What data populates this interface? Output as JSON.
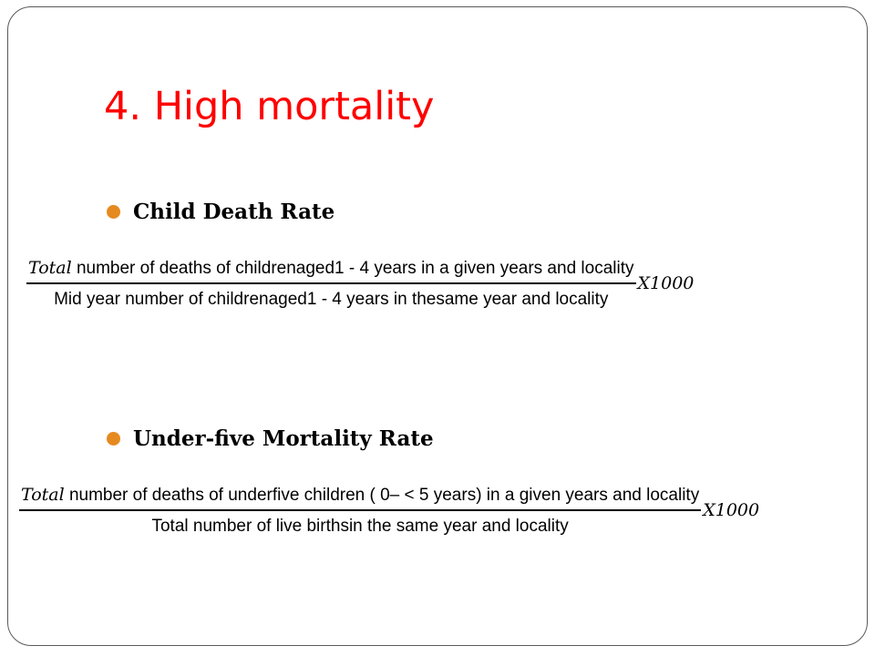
{
  "slide": {
    "title": "4. High mortality",
    "accent_color": "#ff0000",
    "bullet_color": "#e58a1f"
  },
  "bullets": [
    {
      "label": "Child Death Rate"
    },
    {
      "label": "Under-five Mortality Rate"
    }
  ],
  "formulas": [
    {
      "numerator_lead": "Total",
      "numerator_rest": " number of deaths of childrenaged1 - 4 years in a given years and locality",
      "denominator": "Mid year number of childrenaged1 - 4 years in thesame year and locality",
      "multiplier": "X1000"
    },
    {
      "numerator_lead": "Total",
      "numerator_rest": " number of deaths of underfive children ( 0– < 5 years) in a given years and locality",
      "denominator": "Total number of live birthsin the same year and locality",
      "multiplier": "X1000"
    }
  ]
}
